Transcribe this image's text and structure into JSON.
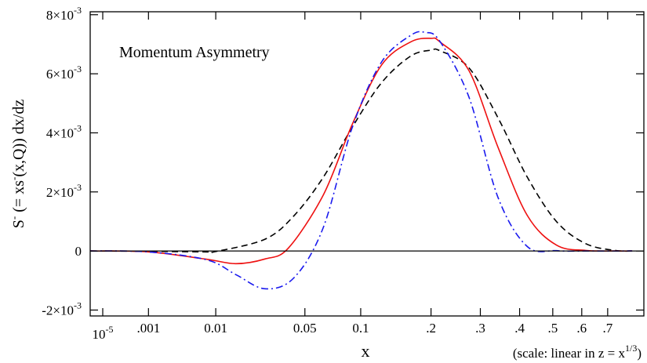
{
  "chart_data": {
    "type": "line",
    "title": "",
    "annotation": "Momentum Asymmetry",
    "xlabel": "x",
    "x_scale_note_prefix": "(scale: linear in z = x",
    "x_scale_note_sup": "1/3",
    "x_scale_note_suffix": ")",
    "ylabel_parts": {
      "s1": "S",
      "s1_sup": "-",
      "mid1": " (= xs",
      "s2_sup": "-",
      "mid2": "(x,Q)) dx/dz"
    },
    "xlim": [
      0,
      0.95
    ],
    "ylim": [
      -0.0022,
      0.0081
    ],
    "x_ticks": [
      {
        "label": "10",
        "sup": "-5",
        "value": 1e-05
      },
      {
        "label": ".001",
        "sup": "",
        "value": 0.001
      },
      {
        "label": "0.01",
        "sup": "",
        "value": 0.01
      },
      {
        "label": "0.05",
        "sup": "",
        "value": 0.05
      },
      {
        "label": "0.1",
        "sup": "",
        "value": 0.1
      },
      {
        "label": ".2",
        "sup": "",
        "value": 0.2
      },
      {
        "label": ".3",
        "sup": "",
        "value": 0.3
      },
      {
        "label": ".4",
        "sup": "",
        "value": 0.4
      },
      {
        "label": ".5",
        "sup": "",
        "value": 0.5
      },
      {
        "label": ".6",
        "sup": "",
        "value": 0.6
      },
      {
        "label": ".7",
        "sup": "",
        "value": 0.7
      }
    ],
    "y_ticks": [
      {
        "mant": "8×10",
        "exp": "-3",
        "value": 0.008
      },
      {
        "mant": "6×10",
        "exp": "-3",
        "value": 0.006
      },
      {
        "mant": "4×10",
        "exp": "-3",
        "value": 0.004
      },
      {
        "mant": "2×10",
        "exp": "-3",
        "value": 0.002
      },
      {
        "mant": "0",
        "exp": "",
        "value": 0
      },
      {
        "mant": "-2×10",
        "exp": "-3",
        "value": -0.002
      }
    ],
    "zero_line": true,
    "series": [
      {
        "name": "dashed (black)",
        "color": "#000000",
        "dash": "8,5",
        "z": [
          0.0,
          0.1,
          0.2,
          0.215,
          0.3,
          0.35,
          0.4,
          0.45,
          0.5,
          0.55,
          0.585,
          0.6,
          0.65,
          0.7,
          0.75,
          0.8,
          0.85,
          0.9,
          0.93
        ],
        "y": [
          0.0,
          -1e-05,
          -3e-05,
          -2e-05,
          0.0004,
          0.0012,
          0.0025,
          0.0042,
          0.0057,
          0.0066,
          0.0068,
          0.00678,
          0.0062,
          0.0045,
          0.0025,
          0.001,
          0.00025,
          2e-05,
          0.0
        ]
      },
      {
        "name": "solid (red)",
        "color": "#ee1111",
        "dash": "",
        "z": [
          0.0,
          0.1,
          0.2,
          0.25,
          0.3,
          0.34,
          0.4,
          0.45,
          0.5,
          0.55,
          0.585,
          0.6,
          0.65,
          0.7,
          0.75,
          0.8,
          0.85,
          0.9,
          0.93
        ],
        "y": [
          0.0,
          -3e-05,
          -0.00028,
          -0.00043,
          -0.00027,
          0.0001,
          0.0019,
          0.0043,
          0.0063,
          0.00708,
          0.0072,
          0.00708,
          0.0061,
          0.0035,
          0.0012,
          0.0002,
          2e-05,
          0.0,
          0.0
        ]
      },
      {
        "name": "dash-dot (blue)",
        "color": "#1a1aee",
        "dash": "9,4,2,4",
        "z": [
          0.0,
          0.1,
          0.2,
          0.25,
          0.3,
          0.35,
          0.4,
          0.45,
          0.5,
          0.55,
          0.575,
          0.6,
          0.65,
          0.7,
          0.75,
          0.8,
          0.85,
          0.93
        ],
        "y": [
          0.0,
          -3e-05,
          -0.0003,
          -0.0008,
          -0.00128,
          -0.0009,
          0.0008,
          0.0042,
          0.0064,
          0.0073,
          0.0074,
          0.0071,
          0.0052,
          0.0018,
          0.00015,
          1e-05,
          0.0,
          0.0
        ]
      }
    ]
  }
}
